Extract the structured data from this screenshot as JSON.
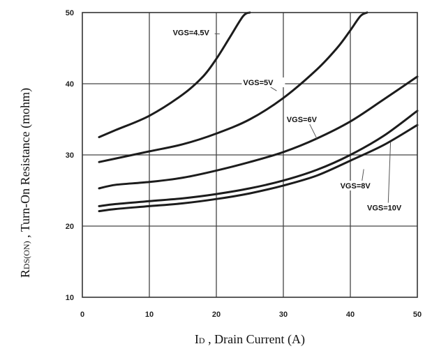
{
  "chart_data": {
    "type": "line",
    "xlabel_symbol": "I",
    "xlabel_sub": "D",
    "xlabel_text": " , Drain Current (A)",
    "ylabel_symbol": "R",
    "ylabel_sub": "DS(ON)",
    "ylabel_text": " ,  Turn-On Resistance (mohm)",
    "xlim": [
      0,
      50
    ],
    "ylim": [
      10,
      50
    ],
    "xticks": [
      0,
      10,
      20,
      30,
      40,
      50
    ],
    "yticks": [
      10,
      20,
      30,
      40,
      50
    ],
    "grid": true,
    "series": [
      {
        "name": "VGS=4.5V",
        "x": [
          2.5,
          5,
          10,
          15,
          18,
          20,
          22,
          24,
          25
        ],
        "y": [
          32.5,
          33.5,
          35.5,
          38.5,
          41,
          43.5,
          46.5,
          49.5,
          50
        ]
      },
      {
        "name": "VGS=5V",
        "x": [
          2.5,
          5,
          10,
          15,
          20,
          25,
          30,
          35,
          38,
          40,
          41.5,
          42.5
        ],
        "y": [
          29,
          29.5,
          30.5,
          31.5,
          33,
          35,
          38,
          42,
          45,
          47.5,
          49.5,
          50
        ]
      },
      {
        "name": "VGS=6V",
        "x": [
          2.5,
          5,
          10,
          15,
          20,
          25,
          30,
          35,
          40,
          45,
          50
        ],
        "y": [
          25.3,
          25.8,
          26.2,
          26.8,
          27.8,
          29,
          30.4,
          32.3,
          34.7,
          37.8,
          41
        ]
      },
      {
        "name": "VGS=8V",
        "x": [
          2.5,
          5,
          10,
          15,
          20,
          25,
          30,
          35,
          40,
          45,
          50
        ],
        "y": [
          22.8,
          23.1,
          23.5,
          23.9,
          24.5,
          25.3,
          26.4,
          27.9,
          30,
          32.7,
          36.2
        ]
      },
      {
        "name": "VGS=10V",
        "x": [
          2.5,
          5,
          10,
          15,
          20,
          25,
          30,
          35,
          40,
          45,
          50
        ],
        "y": [
          22.1,
          22.4,
          22.8,
          23.2,
          23.8,
          24.6,
          25.7,
          27.1,
          29.2,
          31.4,
          34.2
        ]
      }
    ],
    "annotations": [
      {
        "text": "VGS=4.5V",
        "series": 0,
        "label_at": [
          13.5,
          46.8
        ],
        "points_to": [
          20.5,
          47
        ]
      },
      {
        "text": "VGS=5V",
        "series": 1,
        "label_at": [
          24.0,
          39.8
        ],
        "points_to": [
          29.0,
          39.0
        ]
      },
      {
        "text": "VGS=6V",
        "series": 2,
        "label_at": [
          30.5,
          34.6
        ],
        "points_to": [
          35.0,
          32.3
        ]
      },
      {
        "text": "VGS=8V",
        "series": 3,
        "label_at": [
          38.5,
          25.3
        ],
        "points_to": [
          42.0,
          28.0
        ]
      },
      {
        "text": "VGS=10V",
        "series": 4,
        "label_at": [
          42.5,
          22.2
        ],
        "points_to": [
          46.0,
          31.8
        ]
      }
    ]
  }
}
